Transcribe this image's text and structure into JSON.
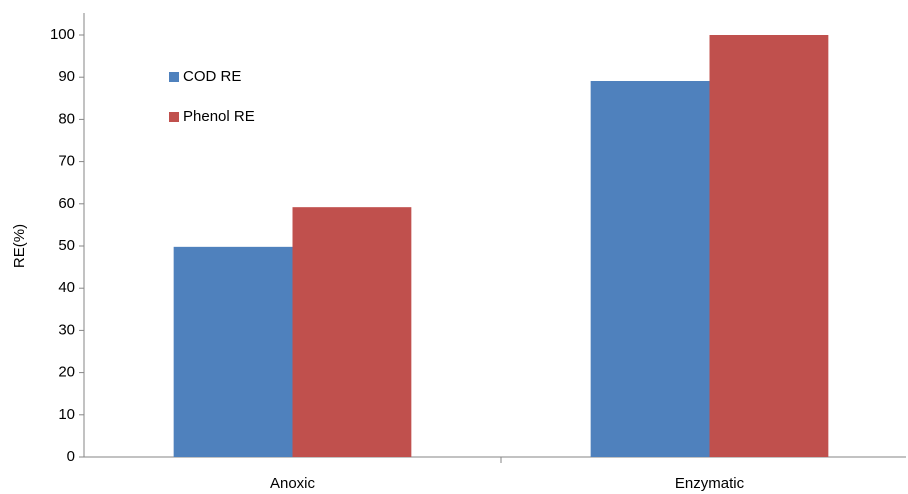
{
  "chart_data": {
    "type": "bar",
    "y_label": "RE(%)",
    "categories": [
      "Anoxic",
      "Enzymatic"
    ],
    "series": [
      {
        "name": "COD RE",
        "color": "#4f81bd",
        "values": [
          49.8,
          89.1
        ]
      },
      {
        "name": "Phenol RE",
        "color": "#c0504d",
        "values": [
          59.2,
          100
        ]
      }
    ],
    "ylim": [
      0,
      100
    ],
    "yticks": [
      0,
      10,
      20,
      30,
      40,
      50,
      60,
      70,
      80,
      90,
      100
    ],
    "grid": false,
    "legend": "upper left"
  }
}
